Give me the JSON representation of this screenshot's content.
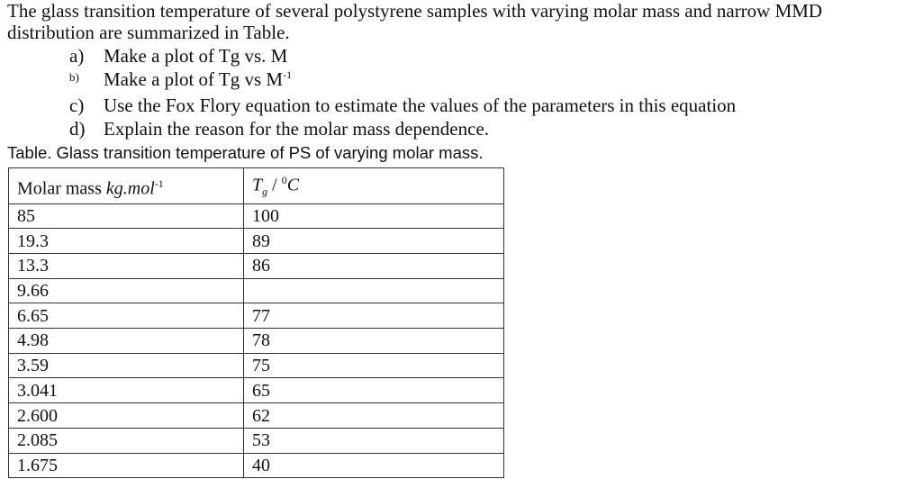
{
  "intro": [
    "The glass transition temperature of several polystyrene samples with varying molar mass and narrow MMD",
    "distribution are summarized in Table."
  ],
  "questions": [
    {
      "marker": "a)",
      "text": "Make a plot of Tg vs. M"
    },
    {
      "marker": "b)",
      "text": "Make a plot of Tg vs M",
      "sup": "-1"
    },
    {
      "marker": "c)",
      "text": "Use the Fox Flory equation to estimate the values of the parameters in this equation"
    },
    {
      "marker": "d)",
      "text": "Explain the reason for the molar mass dependence."
    }
  ],
  "caption": "Table. Glass transition temperature of PS of varying molar mass.",
  "table": {
    "header": {
      "col1": "Molar mass ",
      "col1_unit": "kg.mol",
      "col1_sup": "-1",
      "col2_sym": "T",
      "col2_sub": "g",
      "col2_rest": " / ",
      "col2_sup": "0",
      "col2_unit": "C"
    },
    "rows": [
      [
        "85",
        "100"
      ],
      [
        "19.3",
        "89"
      ],
      [
        "13.3",
        "86"
      ],
      [
        "9.66",
        ""
      ],
      [
        "6.65",
        "77"
      ],
      [
        "4.98",
        "78"
      ],
      [
        "3.59",
        "75"
      ],
      [
        "3.041",
        "65"
      ],
      [
        "2.600",
        "62"
      ],
      [
        "2.085",
        "53"
      ],
      [
        "1.675",
        "40"
      ]
    ]
  }
}
